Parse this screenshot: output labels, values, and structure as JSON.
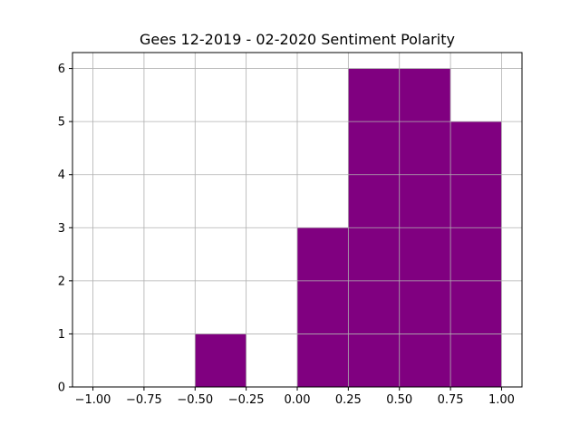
{
  "chart_data": {
    "type": "bar",
    "title": "Gees 12-2019 - 02-2020 Sentiment Polarity",
    "xlabel": "",
    "ylabel": "",
    "xlim": [
      -1.1,
      1.1
    ],
    "ylim": [
      0,
      6.3
    ],
    "grid": true,
    "bar_color": "#800080",
    "bins": [
      {
        "start": -1.0,
        "end": -0.75,
        "count": 0
      },
      {
        "start": -0.75,
        "end": -0.5,
        "count": 0
      },
      {
        "start": -0.5,
        "end": -0.25,
        "count": 1
      },
      {
        "start": -0.25,
        "end": 0.0,
        "count": 0
      },
      {
        "start": 0.0,
        "end": 0.25,
        "count": 3
      },
      {
        "start": 0.25,
        "end": 0.5,
        "count": 6
      },
      {
        "start": 0.5,
        "end": 0.75,
        "count": 6
      },
      {
        "start": 0.75,
        "end": 1.0,
        "count": 5
      }
    ],
    "x_ticks": [
      -1.0,
      -0.75,
      -0.5,
      -0.25,
      0.0,
      0.25,
      0.5,
      0.75,
      1.0
    ],
    "x_tick_labels": [
      "−1.00",
      "−0.75",
      "−0.50",
      "−0.25",
      "0.00",
      "0.25",
      "0.50",
      "0.75",
      "1.00"
    ],
    "y_ticks": [
      0,
      1,
      2,
      3,
      4,
      5,
      6
    ],
    "y_tick_labels": [
      "0",
      "1",
      "2",
      "3",
      "4",
      "5",
      "6"
    ]
  }
}
